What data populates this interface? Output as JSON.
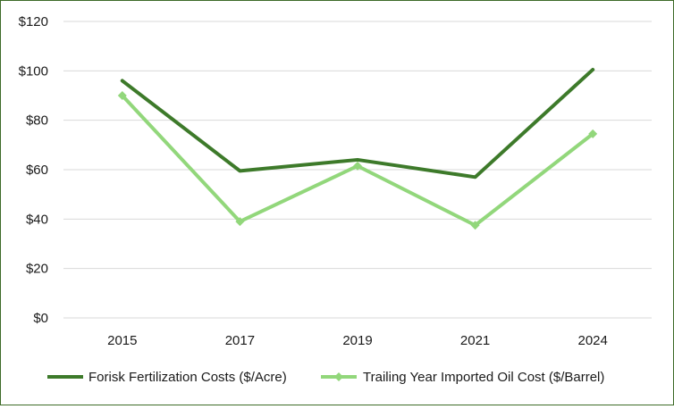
{
  "chart_data": {
    "type": "line",
    "title": "",
    "xlabel": "",
    "ylabel": "",
    "categories": [
      "2015",
      "2017",
      "2019",
      "2021",
      "2024"
    ],
    "ylim": [
      0,
      120
    ],
    "yticks": [
      0,
      20,
      40,
      60,
      80,
      100,
      120
    ],
    "ytick_labels": [
      "$0",
      "$20",
      "$40",
      "$60",
      "$80",
      "$100",
      "$120"
    ],
    "grid": true,
    "legend_position": "bottom",
    "series": [
      {
        "name": "Forisk Fertilization Costs ($/Acre)",
        "values": [
          96,
          59.5,
          64,
          57,
          100.5
        ],
        "color": "#3d7a2a",
        "marker": "none"
      },
      {
        "name": "Trailing Year Imported Oil Cost ($/Barrel)",
        "values": [
          90,
          39,
          61.5,
          37.5,
          74.5
        ],
        "color": "#92d77b",
        "marker": "diamond"
      }
    ]
  }
}
